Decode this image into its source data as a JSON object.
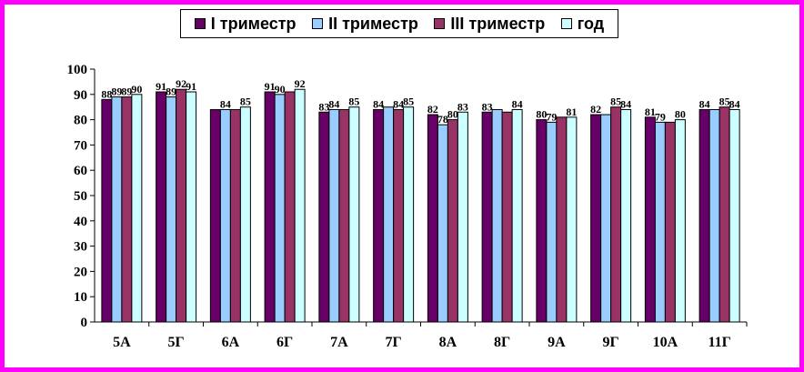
{
  "chart_data": {
    "type": "bar",
    "categories": [
      "5А",
      "5Г",
      "6А",
      "6Г",
      "7А",
      "7Г",
      "8А",
      "8Г",
      "9А",
      "9Г",
      "10А",
      "11Г"
    ],
    "series": [
      {
        "name": "I триместр",
        "color": "#660066",
        "values": [
          88,
          91,
          84,
          91,
          83,
          84,
          82,
          83,
          80,
          82,
          81,
          84
        ]
      },
      {
        "name": "II триместр",
        "color": "#99ccff",
        "values": [
          89,
          89,
          84,
          90,
          84,
          85,
          78,
          84,
          79,
          82,
          79,
          84
        ]
      },
      {
        "name": "III триместр",
        "color": "#993366",
        "values": [
          89,
          92,
          84,
          91,
          84,
          84,
          80,
          83,
          81,
          85,
          79,
          85
        ]
      },
      {
        "name": "год",
        "color": "#ccffff",
        "values": [
          90,
          91,
          85,
          92,
          85,
          85,
          83,
          84,
          81,
          84,
          80,
          84
        ]
      }
    ],
    "data_labels": [
      [
        "88",
        "89",
        "89",
        "90"
      ],
      [
        "91",
        "89",
        "92",
        "91"
      ],
      [
        "",
        "84",
        "",
        "85"
      ],
      [
        "91",
        "90",
        "",
        "92"
      ],
      [
        "83",
        "84",
        "",
        "85"
      ],
      [
        "84",
        "",
        "84",
        "85"
      ],
      [
        "82",
        "78",
        "80",
        "83"
      ],
      [
        "83",
        "",
        "",
        "84"
      ],
      [
        "80",
        "79",
        "",
        "81"
      ],
      [
        "82",
        "",
        "85",
        "84"
      ],
      [
        "81",
        "79",
        "",
        "80"
      ],
      [
        "84",
        "",
        "85",
        "84"
      ]
    ],
    "ylim": [
      0,
      100
    ],
    "yticks": [
      0,
      10,
      20,
      30,
      40,
      50,
      60,
      70,
      80,
      90,
      100
    ],
    "legend_position": "top",
    "grid": false,
    "frame_color": "#ff00ff"
  }
}
